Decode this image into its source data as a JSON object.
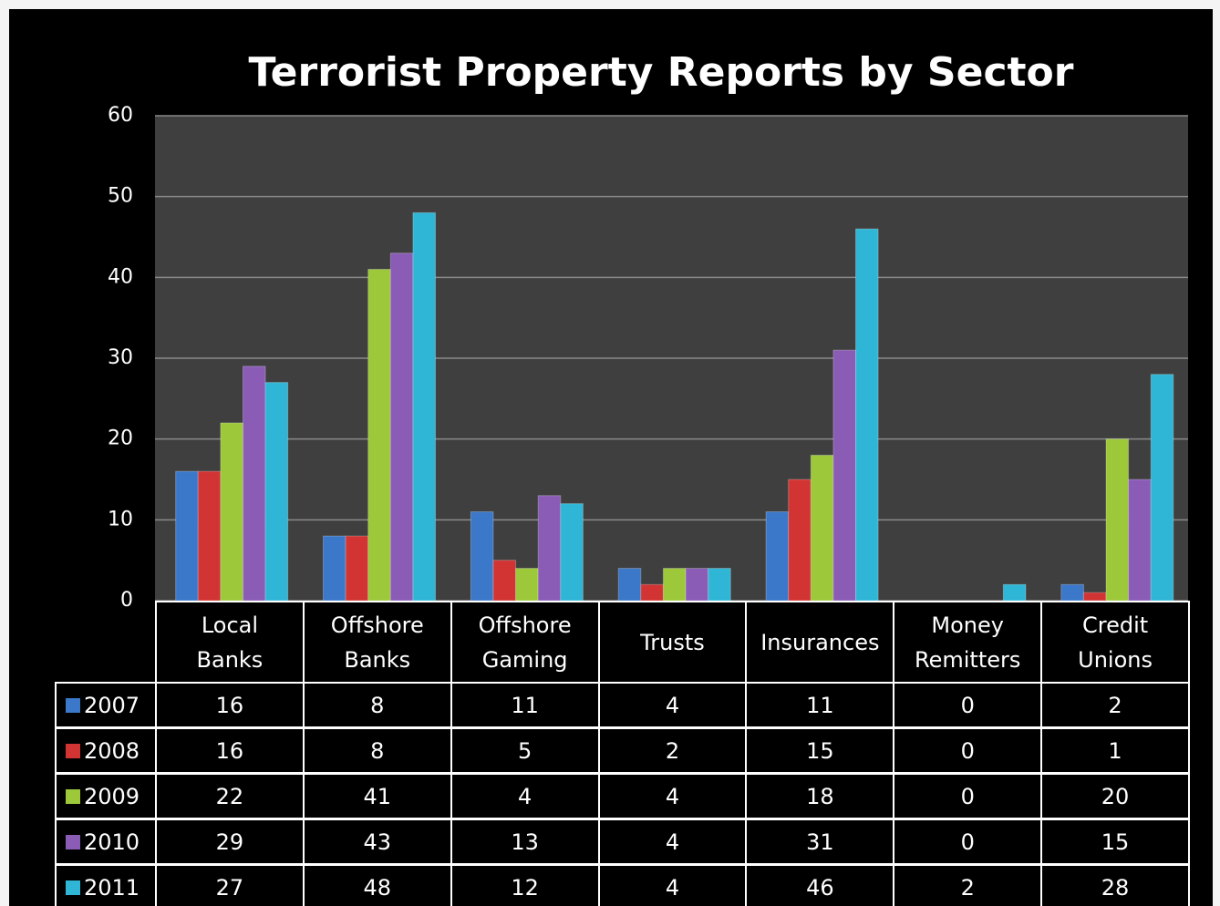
{
  "chart_data": {
    "type": "bar",
    "title": "Terrorist Property Reports by Sector",
    "categories": [
      "Local Banks",
      "Offshore Banks",
      "Offshore Gaming",
      "Trusts",
      "Insurances",
      "Money Remitters",
      "Credit Unions"
    ],
    "series": [
      {
        "name": "2007",
        "color": "#3b78c9",
        "values": [
          16,
          8,
          11,
          4,
          11,
          0,
          2
        ]
      },
      {
        "name": "2008",
        "color": "#d23434",
        "values": [
          16,
          8,
          5,
          2,
          15,
          0,
          1
        ]
      },
      {
        "name": "2009",
        "color": "#9cc83a",
        "values": [
          22,
          41,
          4,
          4,
          18,
          0,
          20
        ]
      },
      {
        "name": "2010",
        "color": "#8a5cb6",
        "values": [
          29,
          43,
          13,
          4,
          31,
          0,
          15
        ]
      },
      {
        "name": "2011",
        "color": "#2fb6d6",
        "values": [
          27,
          48,
          12,
          4,
          46,
          2,
          28
        ]
      }
    ],
    "ylim": [
      0,
      60
    ],
    "yticks": [
      0,
      10,
      20,
      30,
      40,
      50,
      60
    ],
    "grid": true
  }
}
